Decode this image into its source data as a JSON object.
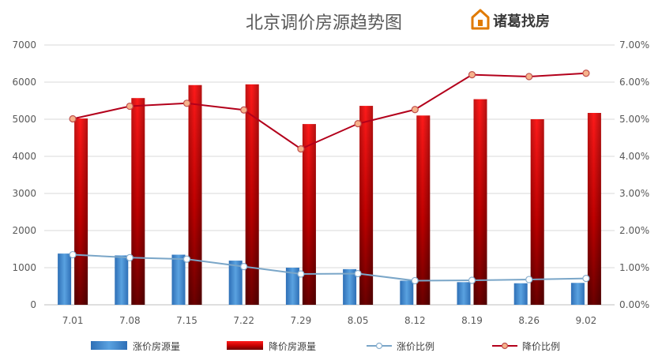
{
  "brand": {
    "name": "诸葛找房",
    "color": "#e07a00",
    "icon": "house-logo-icon"
  },
  "chart_data": {
    "type": "bar",
    "title": "北京调价房源趋势图",
    "categories": [
      "7.01",
      "7.08",
      "7.15",
      "7.22",
      "7.29",
      "8.05",
      "8.12",
      "8.19",
      "8.26",
      "9.02"
    ],
    "y_left": {
      "min": 0,
      "max": 7000,
      "ticks": [
        0,
        1000,
        2000,
        3000,
        4000,
        5000,
        6000,
        7000
      ]
    },
    "y_right": {
      "min": 0,
      "max": 7,
      "ticks": [
        "0.00%",
        "1.00%",
        "2.00%",
        "3.00%",
        "4.00%",
        "5.00%",
        "6.00%",
        "7.00%"
      ]
    },
    "grid": true,
    "legend_position": "bottom",
    "series": [
      {
        "name": "涨价房源量",
        "type": "bar",
        "axis": "left",
        "color": "#3b82c9",
        "values": [
          1380,
          1330,
          1350,
          1190,
          1000,
          960,
          650,
          610,
          580,
          590
        ]
      },
      {
        "name": "降价房源量",
        "type": "bar",
        "axis": "left",
        "color": "#c00000",
        "values": [
          5020,
          5570,
          5920,
          5940,
          4870,
          5360,
          5100,
          5540,
          5000,
          5170
        ]
      },
      {
        "name": "涨价比例",
        "type": "line",
        "axis": "right",
        "color": "#7aa6c8",
        "values": [
          1.35,
          1.27,
          1.23,
          1.03,
          0.83,
          0.84,
          0.65,
          0.66,
          0.68,
          0.71
        ]
      },
      {
        "name": "降价比例",
        "type": "line",
        "axis": "right",
        "color": "#b3001b",
        "values": [
          5.01,
          5.35,
          5.43,
          5.25,
          4.2,
          4.88,
          5.26,
          6.2,
          6.15,
          6.24
        ]
      }
    ]
  }
}
